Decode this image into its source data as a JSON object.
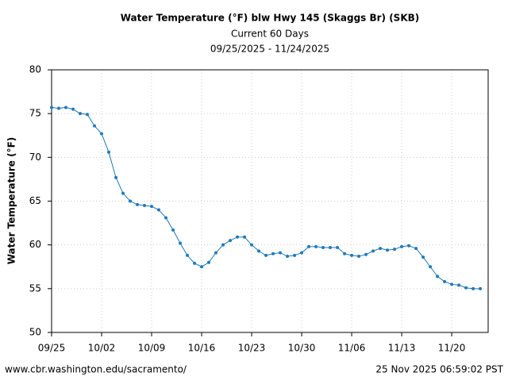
{
  "chart_data": {
    "type": "line",
    "title": "Water Temperature (°F) blw Hwy 145 (Skaggs Br) (SKB)",
    "subtitle": "Current 60 Days",
    "date_range": "09/25/2025 - 11/24/2025",
    "y_label": "Water Temperature (°F)",
    "footer_left": "www.cbr.washington.edu/sacramento/",
    "footer_right": "25 Nov 2025 06:59:02 PST",
    "x": [
      "09/25",
      "09/26",
      "09/27",
      "09/28",
      "09/29",
      "09/30",
      "10/01",
      "10/02",
      "10/03",
      "10/04",
      "10/05",
      "10/06",
      "10/07",
      "10/08",
      "10/09",
      "10/10",
      "10/11",
      "10/12",
      "10/13",
      "10/14",
      "10/15",
      "10/16",
      "10/17",
      "10/18",
      "10/19",
      "10/20",
      "10/21",
      "10/22",
      "10/23",
      "10/24",
      "10/25",
      "10/26",
      "10/27",
      "10/28",
      "10/29",
      "10/30",
      "10/31",
      "11/01",
      "11/02",
      "11/03",
      "11/04",
      "11/05",
      "11/06",
      "11/07",
      "11/08",
      "11/09",
      "11/10",
      "11/11",
      "11/12",
      "11/13",
      "11/14",
      "11/15",
      "11/16",
      "11/17",
      "11/18",
      "11/19",
      "11/20",
      "11/21",
      "11/22",
      "11/23",
      "11/24"
    ],
    "series": [
      {
        "color": "#1f7ab8",
        "values": [
          75.7,
          75.6,
          75.7,
          75.5,
          75.0,
          74.9,
          73.6,
          72.7,
          70.6,
          67.7,
          65.9,
          65.0,
          64.6,
          64.5,
          64.4,
          64.0,
          63.1,
          61.7,
          60.2,
          58.8,
          57.9,
          57.5,
          58.0,
          59.1,
          60.0,
          60.5,
          60.9,
          60.9,
          60.0,
          59.3,
          58.8,
          59.0,
          59.1,
          58.7,
          58.8,
          59.1,
          59.8,
          59.8,
          59.7,
          59.7,
          59.7,
          59.0,
          58.8,
          58.7,
          58.9,
          59.3,
          59.6,
          59.4,
          59.5,
          59.8,
          59.9,
          59.6,
          58.6,
          57.5,
          56.4,
          55.8,
          55.5,
          55.4,
          55.1,
          55.0,
          55.0
        ]
      }
    ],
    "xticks": [
      "09/25",
      "10/02",
      "10/09",
      "10/16",
      "10/23",
      "10/30",
      "11/06",
      "11/13",
      "11/20"
    ],
    "ylim": [
      50,
      80
    ],
    "yticks": [
      50,
      55,
      60,
      65,
      70,
      75,
      80
    ],
    "grid": true
  }
}
